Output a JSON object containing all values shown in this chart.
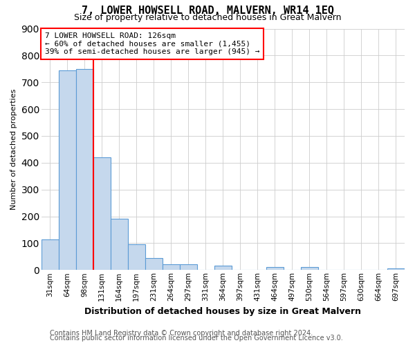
{
  "title": "7, LOWER HOWSELL ROAD, MALVERN, WR14 1EQ",
  "subtitle": "Size of property relative to detached houses in Great Malvern",
  "xlabel": "Distribution of detached houses by size in Great Malvern",
  "ylabel": "Number of detached properties",
  "bin_labels": [
    "31sqm",
    "64sqm",
    "98sqm",
    "131sqm",
    "164sqm",
    "197sqm",
    "231sqm",
    "264sqm",
    "297sqm",
    "331sqm",
    "364sqm",
    "397sqm",
    "431sqm",
    "464sqm",
    "497sqm",
    "530sqm",
    "564sqm",
    "597sqm",
    "630sqm",
    "664sqm",
    "697sqm"
  ],
  "bar_values": [
    113,
    745,
    750,
    420,
    190,
    95,
    45,
    22,
    20,
    0,
    15,
    0,
    0,
    12,
    0,
    12,
    0,
    0,
    0,
    0,
    5
  ],
  "bar_color": "#c5d8ed",
  "bar_edge_color": "#5b9bd5",
  "vline_pos": 2.5,
  "vline_color": "#ff0000",
  "annotation_line1": "7 LOWER HOWSELL ROAD: 126sqm",
  "annotation_line2": "← 60% of detached houses are smaller (1,455)",
  "annotation_line3": "39% of semi-detached houses are larger (945) →",
  "annotation_box_color": "#ffffff",
  "annotation_box_edge_color": "#ff0000",
  "ylim": [
    0,
    900
  ],
  "yticks": [
    0,
    100,
    200,
    300,
    400,
    500,
    600,
    700,
    800,
    900
  ],
  "footer_line1": "Contains HM Land Registry data © Crown copyright and database right 2024.",
  "footer_line2": "Contains public sector information licensed under the Open Government Licence v3.0.",
  "background_color": "#ffffff",
  "grid_color": "#cccccc",
  "title_fontsize": 11,
  "subtitle_fontsize": 9,
  "ylabel_fontsize": 8,
  "xlabel_fontsize": 9,
  "tick_fontsize": 7.5,
  "annotation_fontsize": 8,
  "footer_fontsize": 7
}
